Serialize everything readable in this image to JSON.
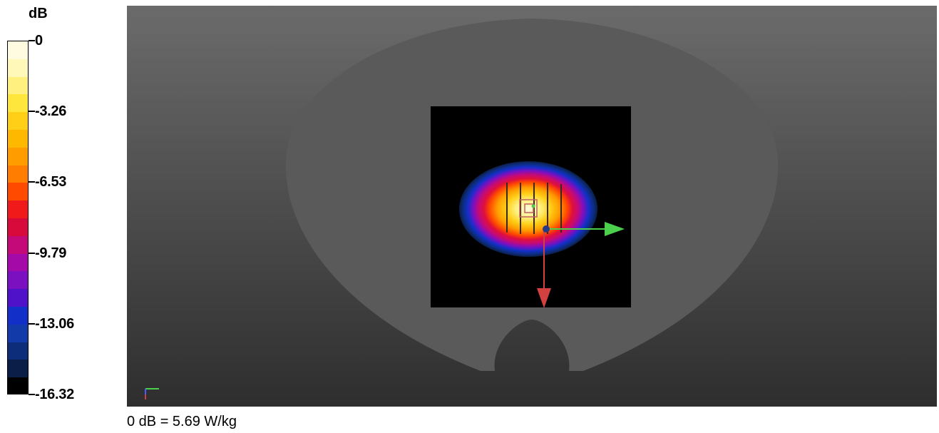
{
  "chart_data": {
    "type": "heatmap",
    "title": "",
    "legend": {
      "unit": "dB",
      "ticks": [
        "0",
        "-3.26",
        "-6.53",
        "-9.79",
        "-13.06",
        "-16.32"
      ],
      "tick_values": [
        0,
        -3.26,
        -6.53,
        -9.79,
        -13.06,
        -16.32
      ],
      "range": [
        -16.32,
        0
      ],
      "placement": "left",
      "colors": [
        "#fffbe0",
        "#fff8b8",
        "#fff080",
        "#ffe63d",
        "#ffcf18",
        "#ffb800",
        "#ff9d00",
        "#ff7d00",
        "#ff4a00",
        "#f01a1a",
        "#d80a3c",
        "#c40a78",
        "#a30aa8",
        "#7a10c0",
        "#5012c8",
        "#1230c8",
        "#123aa8",
        "#0d2c7a",
        "#0b1e48",
        "#000000"
      ]
    },
    "reference": "0 dB = 5.69 W/kg",
    "peak_db": 0,
    "floor_db": -16.32
  },
  "colors": {
    "background_top": "#6b6b6b",
    "background_bottom": "#2e2e2e",
    "phantom": "#5a5a5a",
    "scan_area": "#000000",
    "axis_x": "#4ccf4c",
    "axis_y": "#d24040"
  }
}
